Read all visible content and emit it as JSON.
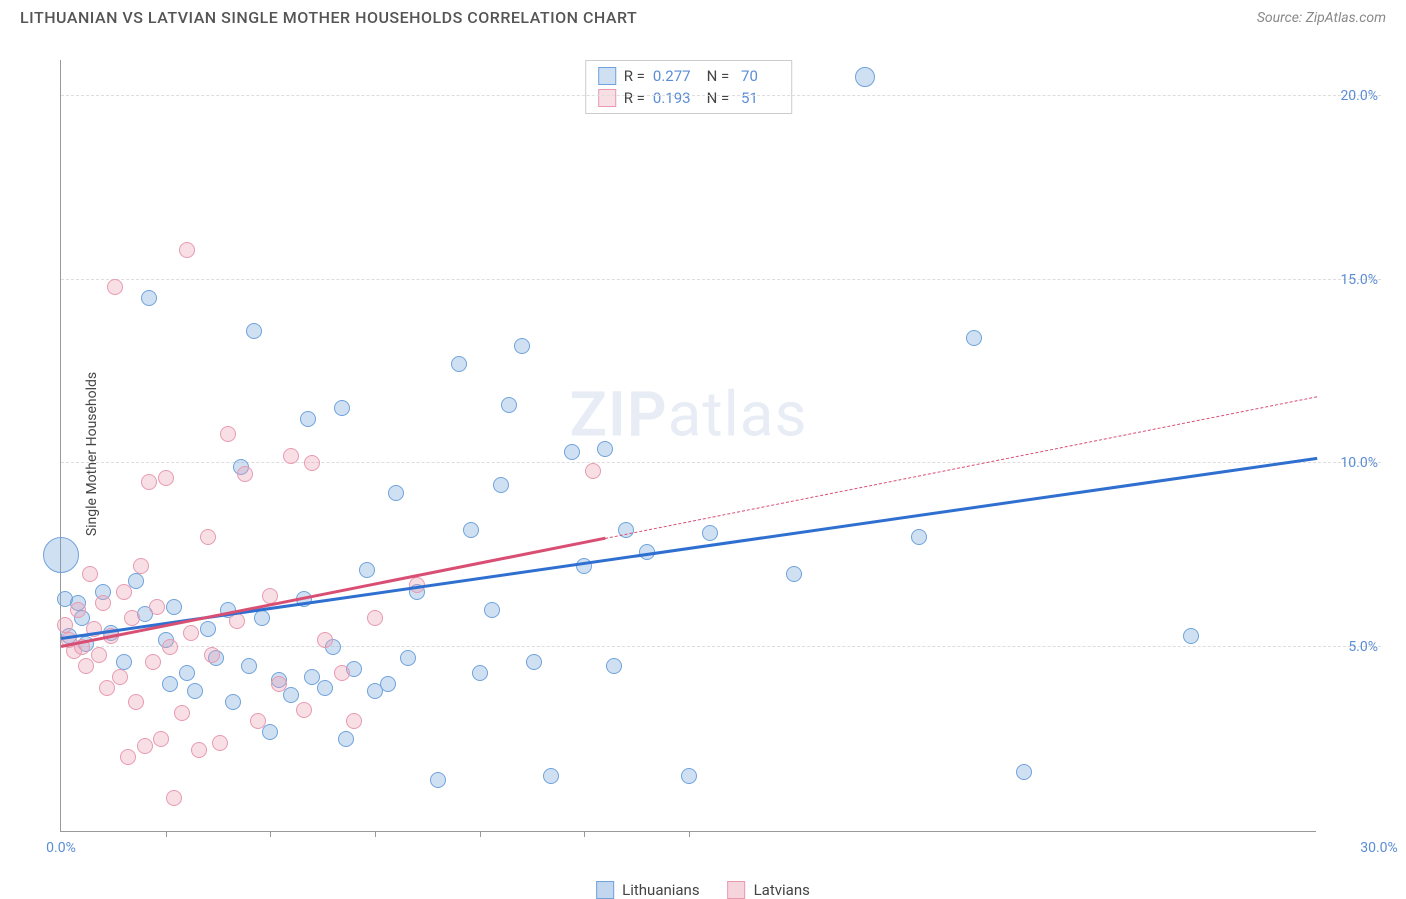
{
  "header": {
    "title": "LITHUANIAN VS LATVIAN SINGLE MOTHER HOUSEHOLDS CORRELATION CHART",
    "source": "Source: ZipAtlas.com"
  },
  "chart": {
    "type": "scatter",
    "y_axis_label": "Single Mother Households",
    "xlim": [
      0,
      30
    ],
    "ylim": [
      0,
      21
    ],
    "x_ticks": [
      0,
      2.5,
      5,
      7.5,
      10,
      12.5,
      15,
      30
    ],
    "x_tick_labels_shown": {
      "0": "0.0%",
      "30": "30.0%"
    },
    "y_ticks": [
      5,
      10,
      15,
      20
    ],
    "y_tick_labels": {
      "5": "5.0%",
      "10": "10.0%",
      "15": "15.0%",
      "20": "20.0%"
    },
    "grid_color": "#dddddd",
    "axis_color": "#999999",
    "background_color": "#ffffff",
    "tick_label_color": "#5b8dd6",
    "axis_label_color": "#444444",
    "watermark": {
      "text_bold": "ZIP",
      "text_light": "atlas",
      "color": "rgba(120,150,200,0.18)",
      "fontsize": 62
    },
    "series": [
      {
        "name": "Lithuanians",
        "marker_fill": "rgba(120,165,220,0.35)",
        "marker_stroke": "#6fa3db",
        "marker_radius": 8,
        "trend_color": "#2f6fd0",
        "trend_width": 2.5,
        "trend": {
          "x1": 0,
          "y1": 5.2,
          "x2": 30,
          "y2": 10.1,
          "dash_after_x": null
        },
        "stats": {
          "R": "0.277",
          "N": "70"
        },
        "points": [
          [
            0.0,
            7.5,
            18
          ],
          [
            0.1,
            6.3,
            8
          ],
          [
            0.2,
            5.3,
            8
          ],
          [
            0.4,
            6.2,
            8
          ],
          [
            0.5,
            5.8,
            8
          ],
          [
            0.6,
            5.1,
            8
          ],
          [
            1.0,
            6.5,
            8
          ],
          [
            1.2,
            5.4,
            8
          ],
          [
            1.5,
            4.6,
            8
          ],
          [
            1.8,
            6.8,
            8
          ],
          [
            2.0,
            5.9,
            8
          ],
          [
            2.1,
            14.5,
            8
          ],
          [
            2.5,
            5.2,
            8
          ],
          [
            2.6,
            4.0,
            8
          ],
          [
            2.7,
            6.1,
            8
          ],
          [
            3.0,
            4.3,
            8
          ],
          [
            3.2,
            3.8,
            8
          ],
          [
            3.5,
            5.5,
            8
          ],
          [
            3.7,
            4.7,
            8
          ],
          [
            4.0,
            6.0,
            8
          ],
          [
            4.1,
            3.5,
            8
          ],
          [
            4.3,
            9.9,
            8
          ],
          [
            4.5,
            4.5,
            8
          ],
          [
            4.6,
            13.6,
            8
          ],
          [
            4.8,
            5.8,
            8
          ],
          [
            5.0,
            2.7,
            8
          ],
          [
            5.2,
            4.1,
            8
          ],
          [
            5.5,
            3.7,
            8
          ],
          [
            5.8,
            6.3,
            8
          ],
          [
            5.9,
            11.2,
            8
          ],
          [
            6.0,
            4.2,
            8
          ],
          [
            6.3,
            3.9,
            8
          ],
          [
            6.5,
            5.0,
            8
          ],
          [
            6.7,
            11.5,
            8
          ],
          [
            6.8,
            2.5,
            8
          ],
          [
            7.0,
            4.4,
            8
          ],
          [
            7.3,
            7.1,
            8
          ],
          [
            7.5,
            3.8,
            8
          ],
          [
            7.8,
            4.0,
            8
          ],
          [
            8.0,
            9.2,
            8
          ],
          [
            8.3,
            4.7,
            8
          ],
          [
            8.5,
            6.5,
            8
          ],
          [
            9.0,
            1.4,
            8
          ],
          [
            9.5,
            12.7,
            8
          ],
          [
            9.8,
            8.2,
            8
          ],
          [
            10.0,
            4.3,
            8
          ],
          [
            10.3,
            6.0,
            8
          ],
          [
            10.5,
            9.4,
            8
          ],
          [
            10.7,
            11.6,
            8
          ],
          [
            11.0,
            13.2,
            8
          ],
          [
            11.3,
            4.6,
            8
          ],
          [
            11.7,
            1.5,
            8
          ],
          [
            12.2,
            10.3,
            8
          ],
          [
            12.5,
            7.2,
            8
          ],
          [
            13.0,
            10.4,
            8
          ],
          [
            13.2,
            4.5,
            8
          ],
          [
            13.5,
            8.2,
            8
          ],
          [
            14.0,
            7.6,
            8
          ],
          [
            15.0,
            1.5,
            8
          ],
          [
            15.5,
            8.1,
            8
          ],
          [
            17.5,
            7.0,
            8
          ],
          [
            19.2,
            20.5,
            10
          ],
          [
            20.5,
            8.0,
            8
          ],
          [
            21.8,
            13.4,
            8
          ],
          [
            23.0,
            1.6,
            8
          ],
          [
            27.0,
            5.3,
            8
          ]
        ]
      },
      {
        "name": "Latvians",
        "marker_fill": "rgba(235,160,180,0.35)",
        "marker_stroke": "#e79bb0",
        "marker_radius": 8,
        "trend_color": "#d94f73",
        "trend_width": 2.5,
        "trend": {
          "x1": 0,
          "y1": 5.0,
          "x2": 30,
          "y2": 11.8,
          "dash_after_x": 13
        },
        "stats": {
          "R": "0.193",
          "N": "51"
        },
        "points": [
          [
            0.1,
            5.6,
            8
          ],
          [
            0.2,
            5.2,
            8
          ],
          [
            0.3,
            4.9,
            8
          ],
          [
            0.4,
            6.0,
            8
          ],
          [
            0.5,
            5.0,
            8
          ],
          [
            0.6,
            4.5,
            8
          ],
          [
            0.7,
            7.0,
            8
          ],
          [
            0.8,
            5.5,
            8
          ],
          [
            0.9,
            4.8,
            8
          ],
          [
            1.0,
            6.2,
            8
          ],
          [
            1.1,
            3.9,
            8
          ],
          [
            1.2,
            5.3,
            8
          ],
          [
            1.3,
            14.8,
            8
          ],
          [
            1.4,
            4.2,
            8
          ],
          [
            1.5,
            6.5,
            8
          ],
          [
            1.6,
            2.0,
            8
          ],
          [
            1.7,
            5.8,
            8
          ],
          [
            1.8,
            3.5,
            8
          ],
          [
            1.9,
            7.2,
            8
          ],
          [
            2.0,
            2.3,
            8
          ],
          [
            2.1,
            9.5,
            8
          ],
          [
            2.2,
            4.6,
            8
          ],
          [
            2.3,
            6.1,
            8
          ],
          [
            2.4,
            2.5,
            8
          ],
          [
            2.5,
            9.6,
            8
          ],
          [
            2.6,
            5.0,
            8
          ],
          [
            2.7,
            0.9,
            8
          ],
          [
            2.9,
            3.2,
            8
          ],
          [
            3.0,
            15.8,
            8
          ],
          [
            3.1,
            5.4,
            8
          ],
          [
            3.3,
            2.2,
            8
          ],
          [
            3.5,
            8.0,
            8
          ],
          [
            3.6,
            4.8,
            8
          ],
          [
            3.8,
            2.4,
            8
          ],
          [
            4.0,
            10.8,
            8
          ],
          [
            4.2,
            5.7,
            8
          ],
          [
            4.4,
            9.7,
            8
          ],
          [
            4.7,
            3.0,
            8
          ],
          [
            5.0,
            6.4,
            8
          ],
          [
            5.2,
            4.0,
            8
          ],
          [
            5.5,
            10.2,
            8
          ],
          [
            5.8,
            3.3,
            8
          ],
          [
            6.0,
            10.0,
            8
          ],
          [
            6.3,
            5.2,
            8
          ],
          [
            6.7,
            4.3,
            8
          ],
          [
            7.0,
            3.0,
            8
          ],
          [
            7.5,
            5.8,
            8
          ],
          [
            8.5,
            6.7,
            8
          ],
          [
            12.7,
            9.8,
            8
          ]
        ]
      }
    ],
    "bottom_legend": [
      {
        "label": "Lithuanians",
        "fill": "rgba(120,165,220,0.45)",
        "stroke": "#6fa3db"
      },
      {
        "label": "Latvians",
        "fill": "rgba(235,160,180,0.45)",
        "stroke": "#e79bb0"
      }
    ]
  }
}
